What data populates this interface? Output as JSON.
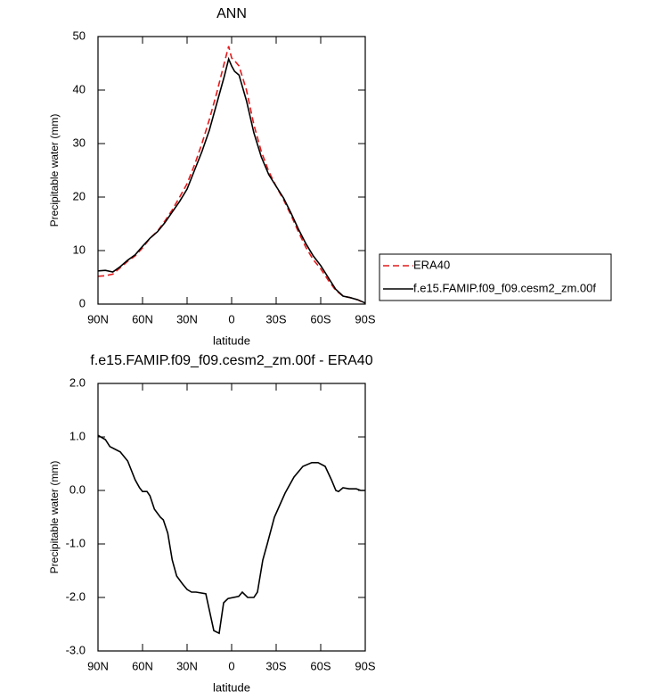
{
  "chart_data": [
    {
      "type": "line",
      "title": "ANN",
      "xlabel": "latitude",
      "ylabel": "Precipitable water (mm)",
      "x": [
        90,
        85,
        80,
        75,
        70,
        65,
        60,
        55,
        50,
        45,
        40,
        35,
        30,
        25,
        20,
        15,
        10,
        5,
        2,
        0,
        -2,
        -5,
        -10,
        -15,
        -20,
        -25,
        -30,
        -35,
        -40,
        -45,
        -50,
        -55,
        -60,
        -65,
        -70,
        -75,
        -80,
        -85,
        -90
      ],
      "series": [
        {
          "name": "ERA40",
          "color": "#e31a1c",
          "dash": true,
          "values": [
            5.2,
            5.3,
            5.6,
            6.8,
            8.0,
            9.0,
            10.5,
            12.3,
            13.6,
            15.5,
            17.6,
            20,
            22.5,
            26,
            30,
            34.5,
            39.5,
            45,
            48.2,
            46,
            45.5,
            44.5,
            40,
            33.5,
            28.5,
            24.8,
            22,
            19.5,
            16.6,
            13.5,
            10.6,
            8.3,
            6.6,
            4.5,
            2.6,
            1.5,
            1.2,
            0.8,
            0.1
          ]
        },
        {
          "name": "f.e15.FAMIP.f09_f09.cesm2_zm.00f",
          "color": "#000000",
          "dash": false,
          "values": [
            6.2,
            6.3,
            6.0,
            7.0,
            8.2,
            9.2,
            10.8,
            12.3,
            13.5,
            15.2,
            17.2,
            19.2,
            21.5,
            25,
            28.5,
            32.5,
            37.5,
            42.5,
            45.8,
            44.5,
            43.5,
            42.8,
            38,
            32,
            27.5,
            24.2,
            22,
            19.8,
            17,
            14,
            11.3,
            9,
            7.2,
            5,
            2.8,
            1.5,
            1.2,
            0.8,
            0.2
          ]
        }
      ],
      "xlim": [
        90,
        -90
      ],
      "xticks": [
        {
          "value": 90,
          "label": "90N"
        },
        {
          "value": 60,
          "label": "60N"
        },
        {
          "value": 30,
          "label": "30N"
        },
        0,
        {
          "value": -30,
          "label": "30S"
        },
        {
          "value": -60,
          "label": "60S"
        },
        {
          "value": -90,
          "label": "90S"
        }
      ],
      "ylim": [
        0,
        50
      ],
      "yticks": [
        0,
        10,
        20,
        30,
        40,
        50
      ],
      "legend": "right"
    },
    {
      "type": "line",
      "title": "f.e15.FAMIP.f09_f09.cesm2_zm.00f - ERA40",
      "xlabel": "latitude",
      "ylabel": "Precipitable water (mm)",
      "x": [
        90,
        85,
        82,
        75,
        70,
        65,
        62,
        60,
        57,
        55,
        52,
        48,
        46,
        43,
        40,
        37,
        33,
        30,
        27,
        24,
        17.4,
        12,
        8.4,
        5.4,
        2.4,
        -4.8,
        -7.2,
        -10.8,
        -15,
        -17.4,
        -21,
        -24,
        -28.8,
        -36,
        -42,
        -48,
        -54,
        -58.2,
        -63,
        -67.2,
        -70.2,
        -72,
        -75,
        -79.2,
        -84,
        -87,
        -90
      ],
      "series": [
        {
          "name": null,
          "color": "#000000",
          "dash": false,
          "values": [
            1.03,
            0.95,
            0.82,
            0.72,
            0.55,
            0.2,
            0.05,
            -0.02,
            -0.02,
            -0.1,
            -0.35,
            -0.5,
            -0.55,
            -0.8,
            -1.3,
            -1.6,
            -1.75,
            -1.85,
            -1.9,
            -1.9,
            -1.93,
            -2.62,
            -2.67,
            -2.1,
            -2.02,
            -1.98,
            -1.9,
            -2.0,
            -2.0,
            -1.9,
            -1.3,
            -1.0,
            -0.5,
            -0.05,
            0.25,
            0.45,
            0.52,
            0.52,
            0.45,
            0.2,
            0.0,
            -0.02,
            0.05,
            0.03,
            0.03,
            0.0,
            0.0
          ]
        }
      ],
      "xlim": [
        90,
        -90
      ],
      "xticks": [
        {
          "value": 90,
          "label": "90N"
        },
        {
          "value": 60,
          "label": "60N"
        },
        {
          "value": 30,
          "label": "30N"
        },
        0,
        {
          "value": -30,
          "label": "30S"
        },
        {
          "value": -60,
          "label": "60S"
        },
        {
          "value": -90,
          "label": "90S"
        }
      ],
      "ylim": [
        -3,
        2
      ],
      "yticks": [
        {
          "value": -3,
          "label": "-3.0"
        },
        {
          "value": -2,
          "label": "-2.0"
        },
        {
          "value": -1,
          "label": "-1.0"
        },
        {
          "value": 0,
          "label": "0.0"
        },
        {
          "value": 1,
          "label": "1.0"
        },
        {
          "value": 2,
          "label": "2.0"
        }
      ]
    }
  ]
}
